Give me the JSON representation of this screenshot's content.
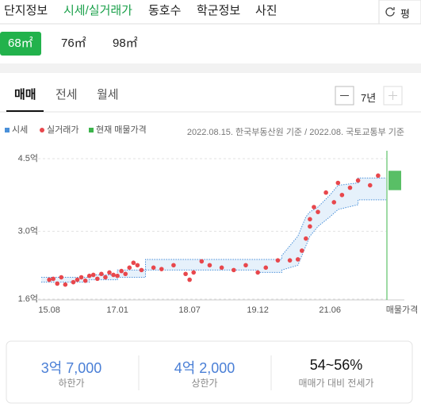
{
  "nav": {
    "tabs": [
      "단지정보",
      "시세/실거래가",
      "동호수",
      "학군정보",
      "사진"
    ],
    "unit_toggle": "평"
  },
  "areas": [
    "68㎡",
    "76㎡",
    "98㎡"
  ],
  "deal_tabs": [
    "매매",
    "전세",
    "월세"
  ],
  "period": "7년",
  "source": "2022.08.15. 한국부동산원 기준 / 2022.08. 국토교통부 기준",
  "chart_data": {
    "type": "combo",
    "xlim": [
      "2015-06",
      "2022-08"
    ],
    "xticks": [
      {
        "value": "2015-08",
        "label": "15.08"
      },
      {
        "value": "2017-01",
        "label": "17.01"
      },
      {
        "value": "2018-07",
        "label": "18.07"
      },
      {
        "value": "2019-12",
        "label": "19.12"
      },
      {
        "value": "2021-06",
        "label": "21.06"
      }
    ],
    "ylim": [
      1.6,
      4.5
    ],
    "yticks": [
      {
        "value": 1.6,
        "label": "1.6억"
      },
      {
        "value": 3.0,
        "label": "3.0억"
      },
      {
        "value": 4.5,
        "label": "4.5억"
      }
    ],
    "grid": true,
    "series": [
      {
        "name": "시세",
        "type": "band",
        "color": "#4a90d9",
        "x": [
          "2015-06",
          "2016-06",
          "2016-06",
          "2017-01",
          "2017-01",
          "2017-08",
          "2017-08",
          "2019-12",
          "2019-12",
          "2020-06",
          "2020-06",
          "2020-10",
          "2020-12",
          "2021-01",
          "2021-03",
          "2021-06",
          "2021-08",
          "2022-01",
          "2022-01",
          "2022-08"
        ],
        "low": [
          1.95,
          1.95,
          2.0,
          2.0,
          2.05,
          2.05,
          2.2,
          2.2,
          2.15,
          2.15,
          2.2,
          2.3,
          2.7,
          2.9,
          3.1,
          3.3,
          3.45,
          3.55,
          3.65,
          3.65
        ],
        "high": [
          2.05,
          2.05,
          2.1,
          2.1,
          2.2,
          2.2,
          2.42,
          2.42,
          2.42,
          2.42,
          2.5,
          2.9,
          3.3,
          3.4,
          3.5,
          3.75,
          3.95,
          4.0,
          4.1,
          4.1
        ]
      },
      {
        "name": "실거래가",
        "type": "scatter",
        "color": "#e8474c",
        "x": [
          "2015-08",
          "2015-09",
          "2015-10",
          "2015-11",
          "2015-12",
          "2016-02",
          "2016-03",
          "2016-04",
          "2016-05",
          "2016-06",
          "2016-07",
          "2016-08",
          "2016-09",
          "2016-10",
          "2016-11",
          "2016-12",
          "2017-01",
          "2017-02",
          "2017-03",
          "2017-04",
          "2017-05",
          "2017-06",
          "2017-07",
          "2017-10",
          "2017-12",
          "2018-03",
          "2018-06",
          "2018-07",
          "2018-08",
          "2018-10",
          "2018-12",
          "2019-03",
          "2019-06",
          "2019-09",
          "2019-12",
          "2020-02",
          "2020-05",
          "2020-08",
          "2020-10",
          "2020-11",
          "2020-12",
          "2021-01",
          "2021-01",
          "2021-02",
          "2021-03",
          "2021-05",
          "2021-07",
          "2021-08",
          "2021-09",
          "2021-11",
          "2022-01",
          "2022-04",
          "2022-06"
        ],
        "values": [
          2.0,
          2.02,
          1.92,
          2.05,
          1.9,
          1.95,
          2.0,
          2.05,
          1.98,
          2.08,
          2.1,
          2.02,
          2.12,
          2.05,
          2.15,
          2.1,
          2.08,
          2.18,
          2.12,
          2.25,
          2.35,
          2.3,
          2.2,
          2.25,
          2.22,
          2.3,
          2.12,
          2.0,
          2.15,
          2.38,
          2.3,
          2.25,
          2.2,
          2.3,
          2.15,
          2.25,
          2.4,
          2.4,
          2.42,
          2.6,
          2.85,
          3.1,
          3.25,
          3.5,
          3.4,
          3.8,
          3.6,
          4.0,
          3.75,
          3.9,
          4.05,
          3.95,
          4.15
        ]
      },
      {
        "name": "현재 매물가격",
        "type": "range",
        "color": "#3cb44b",
        "x": "2022-08",
        "low": 3.85,
        "high": 4.25,
        "label": "매물가격"
      }
    ]
  },
  "summary": [
    {
      "value": "3억 7,000",
      "label": "하한가"
    },
    {
      "value": "4억 2,000",
      "label": "상한가"
    },
    {
      "value": "54~56%",
      "label": "매매가 대비 전세가"
    }
  ]
}
